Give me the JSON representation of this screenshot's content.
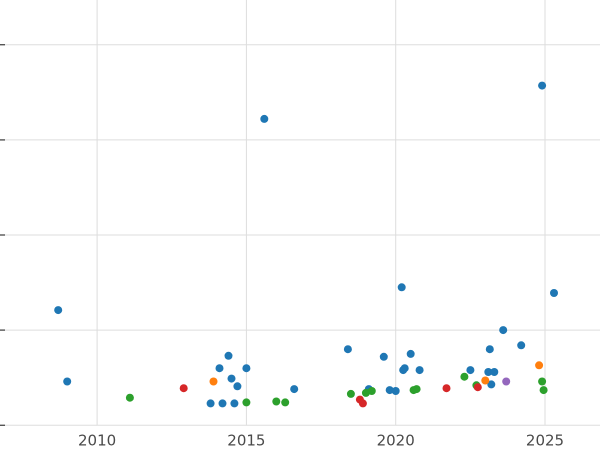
{
  "figure": {
    "background": "#ffffff",
    "gridline_color": "#dddddd",
    "tick_color": "#555555",
    "tick_label_color": "#4a4a4a"
  },
  "chart_data": {
    "type": "scatter",
    "title": "",
    "subtitle": "",
    "xlabel": "",
    "ylabel": "",
    "grid": true,
    "legend": "none",
    "xlim": [
      2006.75,
      2026.84
    ],
    "ylim": [
      -0.26,
      4.47
    ],
    "x_ticks": [
      2010,
      2015,
      2020,
      2025
    ],
    "x_tick_labels": [
      "2010",
      "2015",
      "2020",
      "2025"
    ],
    "y_gridline_values": [
      0,
      1,
      2,
      3,
      4
    ],
    "marker_radius": 4,
    "series": [
      {
        "name": "series-blue",
        "color": "#1f77b4",
        "points": [
          [
            2008.7,
            1.21
          ],
          [
            2009.0,
            0.46
          ],
          [
            2013.8,
            0.23
          ],
          [
            2014.1,
            0.6
          ],
          [
            2014.2,
            0.23
          ],
          [
            2014.4,
            0.73
          ],
          [
            2014.5,
            0.49
          ],
          [
            2014.6,
            0.23
          ],
          [
            2014.7,
            0.41
          ],
          [
            2015.0,
            0.6
          ],
          [
            2015.6,
            3.22
          ],
          [
            2016.6,
            0.38
          ],
          [
            2018.4,
            0.8
          ],
          [
            2019.1,
            0.38
          ],
          [
            2019.6,
            0.72
          ],
          [
            2019.8,
            0.37
          ],
          [
            2020.0,
            0.36
          ],
          [
            2020.2,
            1.45
          ],
          [
            2020.25,
            0.58
          ],
          [
            2020.3,
            0.6
          ],
          [
            2020.5,
            0.75
          ],
          [
            2020.8,
            0.58
          ],
          [
            2022.5,
            0.58
          ],
          [
            2023.1,
            0.56
          ],
          [
            2023.15,
            0.8
          ],
          [
            2023.2,
            0.43
          ],
          [
            2023.3,
            0.56
          ],
          [
            2023.6,
            1.0
          ],
          [
            2024.2,
            0.84
          ],
          [
            2024.9,
            3.57
          ],
          [
            2025.3,
            1.39
          ]
        ]
      },
      {
        "name": "series-green",
        "color": "#2ca02c",
        "points": [
          [
            2011.1,
            0.29
          ],
          [
            2015.0,
            0.24
          ],
          [
            2016.0,
            0.25
          ],
          [
            2016.3,
            0.24
          ],
          [
            2018.5,
            0.33
          ],
          [
            2019.0,
            0.34
          ],
          [
            2019.2,
            0.36
          ],
          [
            2020.6,
            0.37
          ],
          [
            2020.7,
            0.38
          ],
          [
            2022.3,
            0.51
          ],
          [
            2022.7,
            0.42
          ],
          [
            2024.9,
            0.46
          ],
          [
            2024.95,
            0.37
          ]
        ]
      },
      {
        "name": "series-red",
        "color": "#d62728",
        "points": [
          [
            2012.9,
            0.39
          ],
          [
            2018.8,
            0.27
          ],
          [
            2018.9,
            0.23
          ],
          [
            2021.7,
            0.39
          ],
          [
            2022.75,
            0.4
          ]
        ]
      },
      {
        "name": "series-orange",
        "color": "#ff7f0e",
        "points": [
          [
            2013.9,
            0.46
          ],
          [
            2023.0,
            0.47
          ],
          [
            2024.8,
            0.63
          ]
        ]
      },
      {
        "name": "series-purple",
        "color": "#9467bd",
        "points": [
          [
            2023.7,
            0.46
          ]
        ]
      }
    ]
  }
}
